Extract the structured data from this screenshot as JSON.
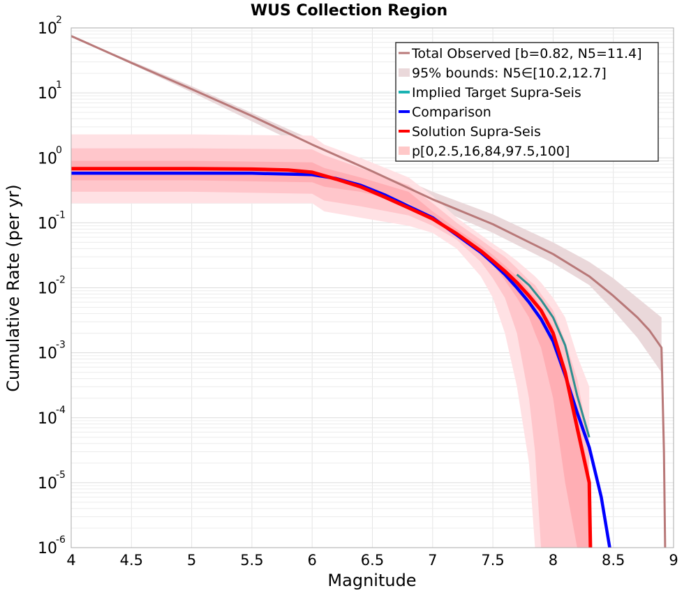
{
  "chart_data": {
    "type": "line",
    "title": "WUS Collection Region",
    "xlabel": "Magnitude",
    "ylabel": "Cumulative Rate (per yr)",
    "xlim": [
      4,
      9
    ],
    "ylim": [
      1e-06,
      100
    ],
    "yscale": "log",
    "grid": true,
    "legend_position": "top-right",
    "x_ticks": [
      "4",
      "4.5",
      "5",
      "5.5",
      "6",
      "6.5",
      "7",
      "7.5",
      "8",
      "8.5",
      "9"
    ],
    "y_ticks": [
      {
        "base": "10",
        "exp": "-6",
        "value": 1e-06
      },
      {
        "base": "10",
        "exp": "-5",
        "value": 1e-05
      },
      {
        "base": "10",
        "exp": "-4",
        "value": 0.0001
      },
      {
        "base": "10",
        "exp": "-3",
        "value": 0.001
      },
      {
        "base": "10",
        "exp": "-2",
        "value": 0.01
      },
      {
        "base": "10",
        "exp": "-1",
        "value": 0.1
      },
      {
        "base": "10",
        "exp": "0",
        "value": 1
      },
      {
        "base": "10",
        "exp": "1",
        "value": 10
      },
      {
        "base": "10",
        "exp": "2",
        "value": 100
      }
    ],
    "legend": [
      {
        "label": "Total Observed [b=0.82, N5=11.4]",
        "color": "#b87878",
        "kind": "line"
      },
      {
        "label": "95% bounds: N5∈[10.2,12.7]",
        "color": "#ead8da",
        "kind": "band"
      },
      {
        "label": "Implied Target Supra-Seis",
        "color": "#1ab2b2",
        "kind": "line"
      },
      {
        "label": "Comparison",
        "color": "#0000ff",
        "kind": "line"
      },
      {
        "label": "Solution Supra-Seis",
        "color": "#ff0000",
        "kind": "line"
      },
      {
        "label": "p[0,2.5,16,84,97.5,100]",
        "color": "#ffc8c8",
        "kind": "band"
      }
    ],
    "series": [
      {
        "name": "Total Observed [b=0.82, N5=11.4]",
        "color": "#b87878",
        "x": [
          4.0,
          4.5,
          5.0,
          5.5,
          6.0,
          6.5,
          7.0,
          7.5,
          8.0,
          8.3,
          8.5,
          8.7,
          8.8,
          8.9,
          8.92,
          8.93
        ],
        "y": [
          75,
          29,
          11.4,
          4.4,
          1.6,
          0.62,
          0.23,
          0.095,
          0.033,
          0.015,
          0.0075,
          0.0035,
          0.0022,
          0.0012,
          3e-05,
          1e-06
        ]
      },
      {
        "name": "95% bounds: N5∈[10.2,12.7]",
        "color": "#ead8da",
        "x": [
          4.0,
          5.0,
          6.0,
          6.5,
          7.0,
          7.5,
          8.0,
          8.3,
          8.5,
          8.7,
          8.9
        ],
        "upper": [
          75,
          12.7,
          1.9,
          0.76,
          0.3,
          0.135,
          0.05,
          0.025,
          0.014,
          0.007,
          0.0035
        ],
        "lower": [
          75,
          10.2,
          1.3,
          0.5,
          0.18,
          0.07,
          0.024,
          0.011,
          0.0045,
          0.0017,
          0.0005
        ]
      },
      {
        "name": "Implied Target Supra-Seis",
        "color": "#1ab2b2",
        "x": [
          7.7,
          7.8,
          7.9,
          8.0,
          8.1,
          8.2,
          8.3
        ],
        "y": [
          0.016,
          0.011,
          0.0065,
          0.0035,
          0.0013,
          0.00022,
          5e-05
        ]
      },
      {
        "name": "Comparison",
        "color": "#0000ff",
        "x": [
          4.0,
          5.0,
          5.5,
          6.0,
          6.2,
          6.4,
          6.6,
          6.8,
          7.0,
          7.2,
          7.4,
          7.5,
          7.6,
          7.7,
          7.8,
          7.9,
          8.0,
          8.1,
          8.2,
          8.3,
          8.4,
          8.47
        ],
        "y": [
          0.58,
          0.58,
          0.58,
          0.55,
          0.48,
          0.38,
          0.27,
          0.18,
          0.12,
          0.065,
          0.035,
          0.024,
          0.016,
          0.01,
          0.006,
          0.0033,
          0.0015,
          0.00045,
          0.00012,
          3.5e-05,
          6e-06,
          1e-06
        ]
      },
      {
        "name": "Solution Supra-Seis",
        "color": "#ff0000",
        "x": [
          4.0,
          5.0,
          5.5,
          5.8,
          6.0,
          6.2,
          6.4,
          6.6,
          6.8,
          7.0,
          7.2,
          7.4,
          7.5,
          7.6,
          7.7,
          7.8,
          7.9,
          8.0,
          8.1,
          8.2,
          8.3,
          8.31
        ],
        "y": [
          0.68,
          0.68,
          0.67,
          0.65,
          0.6,
          0.47,
          0.36,
          0.25,
          0.17,
          0.115,
          0.068,
          0.037,
          0.026,
          0.018,
          0.012,
          0.0075,
          0.0045,
          0.002,
          0.0005,
          7e-05,
          1e-05,
          1e-06
        ]
      },
      {
        "name": "p[0,2.5,16,84,97.5,100]",
        "color": "#ffc8c8",
        "x": [
          4.0,
          5.0,
          6.0,
          6.1,
          6.4,
          6.8,
          7.0,
          7.2,
          7.4,
          7.5,
          7.6,
          7.7,
          7.8,
          7.85,
          7.9,
          8.0,
          8.1,
          8.2,
          8.3
        ],
        "p0": [
          0.2,
          0.2,
          0.2,
          0.15,
          0.12,
          0.09,
          0.07,
          0.04,
          0.015,
          0.007,
          0.002,
          0.0003,
          2e-05,
          1e-06,
          1e-06,
          1e-06,
          1e-06,
          1e-06,
          1e-06
        ],
        "p2_5": [
          0.3,
          0.3,
          0.28,
          0.22,
          0.18,
          0.13,
          0.09,
          0.055,
          0.025,
          0.014,
          0.007,
          0.002,
          0.0002,
          3e-05,
          1e-06,
          1e-06,
          1e-06,
          1e-06,
          1e-06
        ],
        "p16": [
          0.45,
          0.45,
          0.42,
          0.36,
          0.3,
          0.2,
          0.11,
          0.065,
          0.036,
          0.023,
          0.013,
          0.007,
          0.0035,
          0.002,
          0.0012,
          0.0002,
          1e-05,
          1e-06,
          1e-06
        ],
        "p84": [
          0.9,
          0.9,
          0.85,
          0.7,
          0.5,
          0.3,
          0.15,
          0.08,
          0.045,
          0.032,
          0.022,
          0.015,
          0.009,
          0.007,
          0.005,
          0.0025,
          0.0006,
          0.0001,
          1.5e-05
        ],
        "p97_5": [
          1.4,
          1.4,
          1.35,
          1.1,
          0.7,
          0.38,
          0.2,
          0.1,
          0.055,
          0.04,
          0.03,
          0.02,
          0.013,
          0.011,
          0.008,
          0.0045,
          0.0015,
          0.0004,
          4e-05
        ],
        "p100": [
          2.3,
          2.3,
          2.2,
          1.6,
          1.0,
          0.5,
          0.26,
          0.12,
          0.065,
          0.048,
          0.036,
          0.026,
          0.018,
          0.015,
          0.012,
          0.007,
          0.0035,
          0.0009,
          0.0003
        ]
      }
    ]
  }
}
